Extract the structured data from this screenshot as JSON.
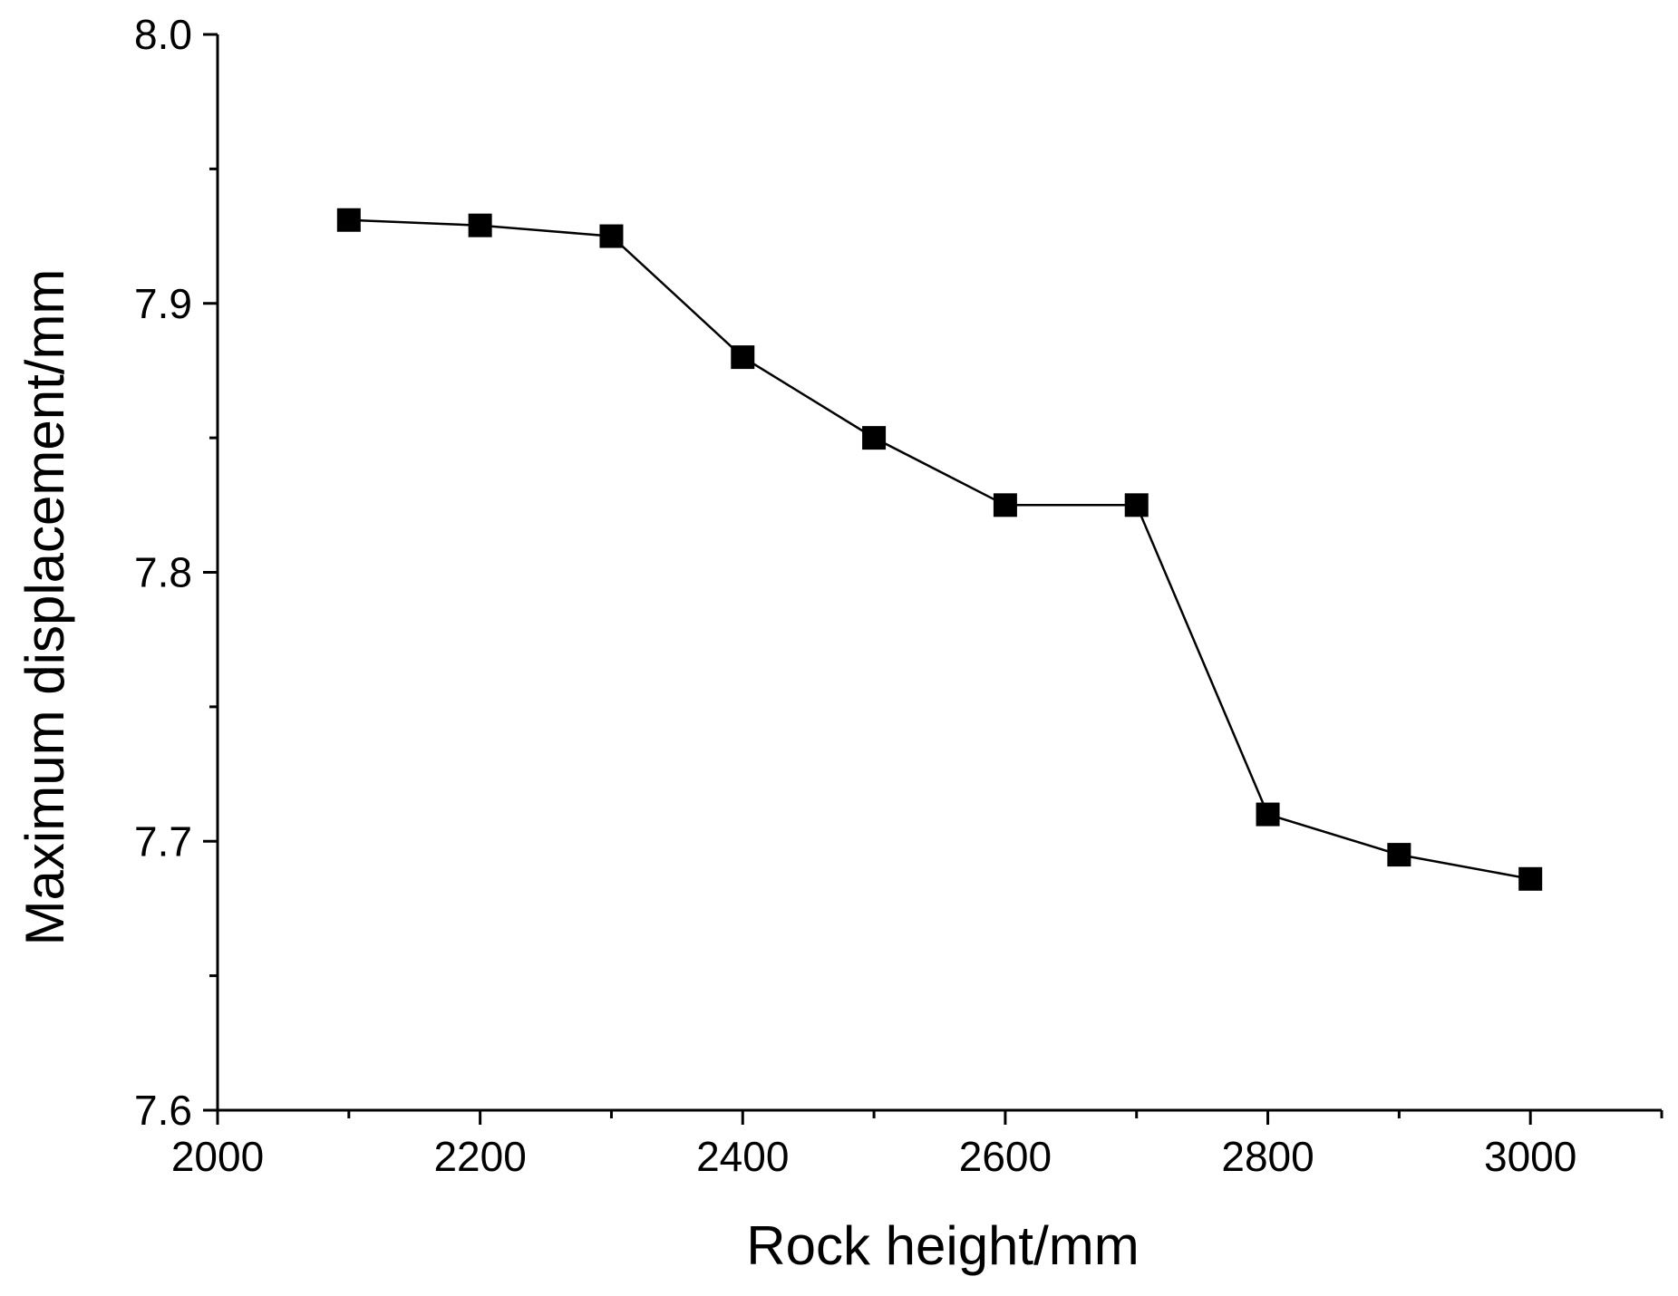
{
  "chart_data": {
    "type": "line",
    "title": "",
    "xlabel": "Rock height/mm",
    "ylabel": "Maximum displacement/mm",
    "xlim": [
      2000,
      3100
    ],
    "ylim": [
      7.6,
      8.0
    ],
    "x_ticks": [
      2000,
      2200,
      2400,
      2600,
      2800,
      3000
    ],
    "x_tick_labels": [
      "2000",
      "2200",
      "2400",
      "2600",
      "2800",
      "3000"
    ],
    "x_minor_ticks": [
      2100,
      2300,
      2500,
      2700,
      2900,
      3100
    ],
    "y_ticks": [
      7.6,
      7.7,
      7.8,
      7.9,
      8.0
    ],
    "y_tick_labels": [
      "7.6",
      "7.7",
      "7.8",
      "7.9",
      "8.0"
    ],
    "y_minor_ticks": [
      7.65,
      7.75,
      7.85,
      7.95
    ],
    "grid": false,
    "legend": "none",
    "marker": "square",
    "line_color": "#000000",
    "series": [
      {
        "x": [
          2100,
          2200,
          2300,
          2400,
          2500,
          2600,
          2700,
          2800,
          2900,
          3000
        ],
        "values": [
          7.931,
          7.929,
          7.925,
          7.88,
          7.85,
          7.825,
          7.825,
          7.71,
          7.695,
          7.686
        ]
      }
    ]
  }
}
